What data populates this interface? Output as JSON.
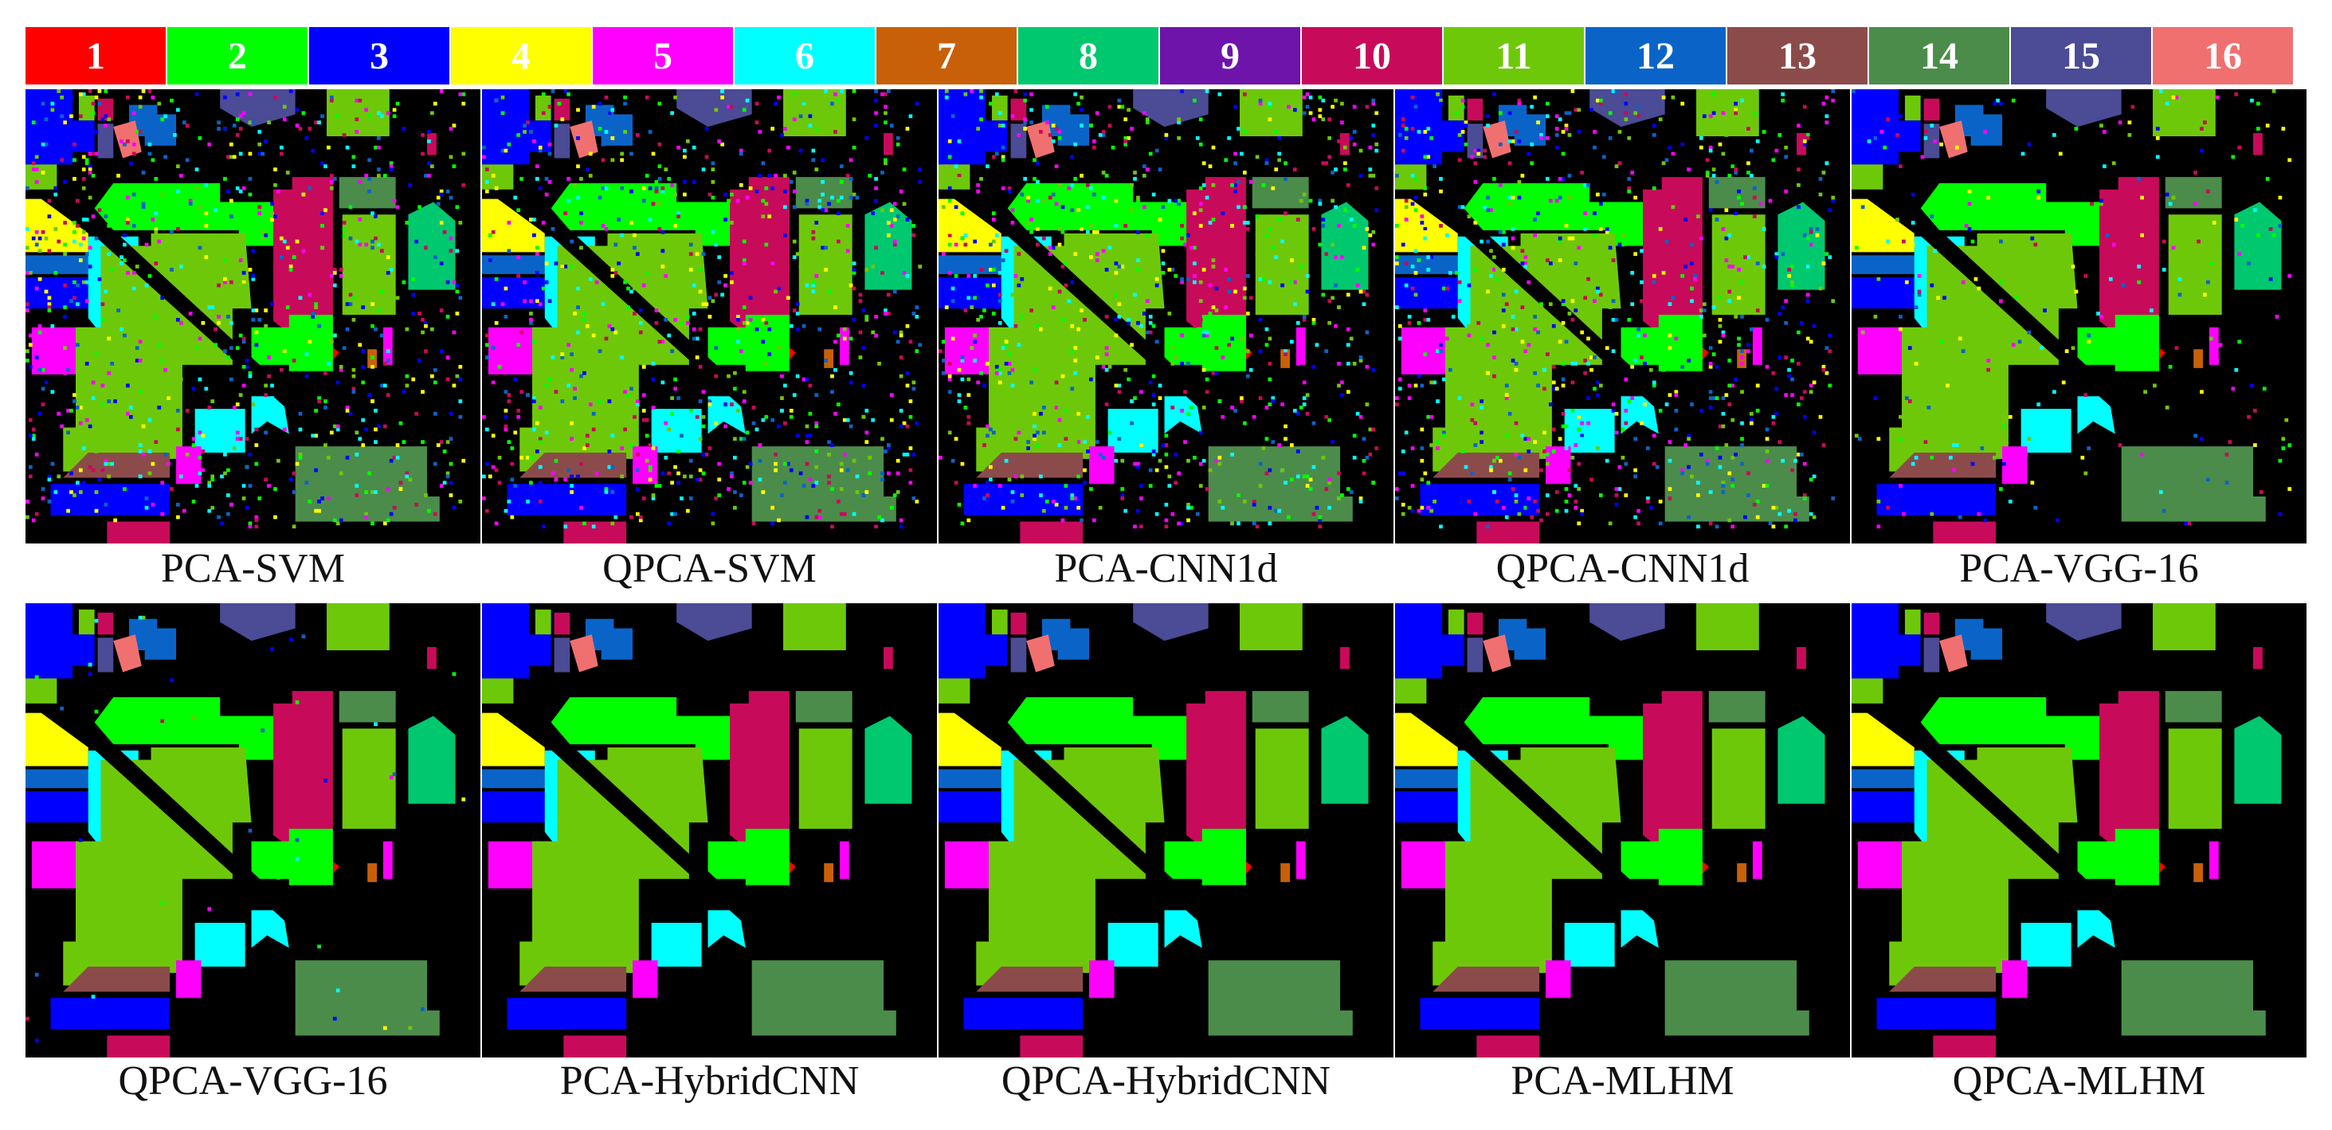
{
  "legend": [
    {
      "label": "1",
      "color": "#ff0000"
    },
    {
      "label": "2",
      "color": "#00ff00"
    },
    {
      "label": "3",
      "color": "#0000ff"
    },
    {
      "label": "4",
      "color": "#ffff00"
    },
    {
      "label": "5",
      "color": "#ff00ff"
    },
    {
      "label": "6",
      "color": "#00ffff"
    },
    {
      "label": "7",
      "color": "#c8600a"
    },
    {
      "label": "8",
      "color": "#00c86e"
    },
    {
      "label": "9",
      "color": "#6e14aa"
    },
    {
      "label": "10",
      "color": "#c80a5a"
    },
    {
      "label": "11",
      "color": "#6ec80a"
    },
    {
      "label": "12",
      "color": "#0a64c8"
    },
    {
      "label": "13",
      "color": "#8c4b4b"
    },
    {
      "label": "14",
      "color": "#4b8c4b"
    },
    {
      "label": "15",
      "color": "#4b4b96"
    },
    {
      "label": "16",
      "color": "#f07070"
    }
  ],
  "panels": [
    {
      "caption": "PCA-SVM",
      "noise": "high"
    },
    {
      "caption": "QPCA-SVM",
      "noise": "high"
    },
    {
      "caption": "PCA-CNN1d",
      "noise": "high"
    },
    {
      "caption": "QPCA-CNN1d",
      "noise": "high"
    },
    {
      "caption": "PCA-VGG-16",
      "noise": "medium"
    },
    {
      "caption": "QPCA-VGG-16",
      "noise": "low"
    },
    {
      "caption": "PCA-HybridCNN",
      "noise": "none"
    },
    {
      "caption": "QPCA-HybridCNN",
      "noise": "none"
    },
    {
      "caption": "PCA-MLHM",
      "noise": "none"
    },
    {
      "caption": "QPCA-MLHM",
      "noise": "none"
    }
  ]
}
